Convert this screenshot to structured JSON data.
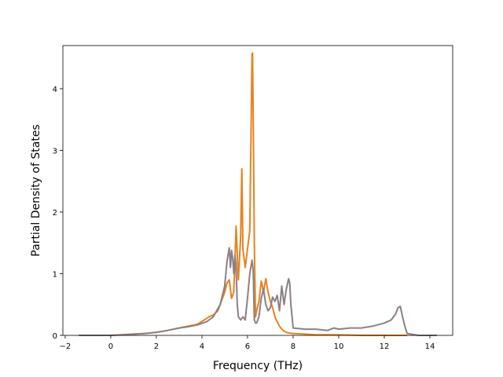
{
  "chart_data": {
    "type": "line",
    "title": "",
    "xlabel": "Frequency (THz)",
    "ylabel": "Partial Density of States",
    "xlim": [
      -2.1,
      15.0
    ],
    "ylim": [
      0,
      4.7
    ],
    "x_ticks": [
      -2,
      0,
      2,
      4,
      6,
      8,
      10,
      12,
      14
    ],
    "x_tick_labels": [
      "−2",
      "0",
      "2",
      "4",
      "6",
      "8",
      "10",
      "12",
      "14"
    ],
    "y_ticks": [
      0,
      1,
      2,
      3,
      4
    ],
    "y_tick_labels": [
      "0",
      "1",
      "2",
      "3",
      "4"
    ],
    "grid": false,
    "legend": "none",
    "series": [
      {
        "color": "#e8821f",
        "x": [
          -1.4,
          0.0,
          0.5,
          1.0,
          1.5,
          2.0,
          2.5,
          3.0,
          3.4,
          3.8,
          4.1,
          4.3,
          4.5,
          4.7,
          4.85,
          5.0,
          5.1,
          5.2,
          5.3,
          5.4,
          5.5,
          5.55,
          5.6,
          5.7,
          5.75,
          5.8,
          5.9,
          6.0,
          6.1,
          6.2,
          6.22,
          6.25,
          6.3,
          6.35,
          6.4,
          6.5,
          6.6,
          6.7,
          6.8,
          6.9,
          7.0,
          7.1,
          7.2,
          7.3,
          7.4,
          7.5,
          7.6,
          7.7,
          7.8,
          8.0,
          8.5,
          9.0,
          10.0,
          11.0,
          12.0,
          12.6,
          12.9,
          13.0
        ],
        "y": [
          0.0,
          0.0,
          0.01,
          0.02,
          0.03,
          0.05,
          0.08,
          0.12,
          0.15,
          0.18,
          0.25,
          0.3,
          0.33,
          0.4,
          0.55,
          0.7,
          0.85,
          0.9,
          0.6,
          0.7,
          1.77,
          1.3,
          0.9,
          1.6,
          2.7,
          1.4,
          1.1,
          1.4,
          1.7,
          4.55,
          4.58,
          3.5,
          1.5,
          0.3,
          0.4,
          0.55,
          0.88,
          0.7,
          0.92,
          0.7,
          0.55,
          0.45,
          0.3,
          0.22,
          0.15,
          0.1,
          0.07,
          0.05,
          0.04,
          0.03,
          0.02,
          0.01,
          0.01,
          0.0,
          0.0,
          0.0,
          0.0,
          0.0
        ]
      },
      {
        "color": "#8c8085",
        "x": [
          -1.4,
          0.0,
          0.5,
          1.0,
          1.5,
          2.0,
          2.5,
          3.0,
          3.4,
          3.8,
          4.2,
          4.5,
          4.8,
          5.0,
          5.1,
          5.2,
          5.25,
          5.3,
          5.35,
          5.4,
          5.45,
          5.5,
          5.55,
          5.6,
          5.7,
          5.8,
          5.9,
          6.0,
          6.1,
          6.2,
          6.25,
          6.3,
          6.35,
          6.4,
          6.5,
          6.6,
          6.7,
          6.8,
          6.9,
          7.0,
          7.1,
          7.2,
          7.3,
          7.4,
          7.5,
          7.6,
          7.7,
          7.8,
          7.85,
          7.9,
          8.0,
          8.5,
          9.0,
          9.5,
          9.8,
          10.0,
          10.5,
          11.0,
          11.5,
          12.0,
          12.3,
          12.5,
          12.6,
          12.7,
          12.8,
          12.9,
          13.0,
          13.5,
          14.3
        ],
        "y": [
          0.0,
          0.0,
          0.01,
          0.02,
          0.03,
          0.05,
          0.08,
          0.12,
          0.14,
          0.17,
          0.22,
          0.3,
          0.5,
          0.8,
          1.2,
          1.42,
          1.1,
          1.38,
          1.25,
          1.0,
          1.3,
          1.1,
          0.5,
          0.3,
          0.25,
          0.3,
          0.25,
          0.6,
          1.0,
          1.22,
          1.05,
          0.25,
          0.2,
          0.2,
          0.3,
          0.6,
          0.75,
          0.5,
          0.4,
          0.45,
          0.62,
          0.55,
          0.65,
          0.4,
          0.8,
          0.5,
          0.75,
          0.92,
          0.85,
          0.5,
          0.12,
          0.1,
          0.1,
          0.08,
          0.12,
          0.1,
          0.12,
          0.12,
          0.15,
          0.2,
          0.25,
          0.35,
          0.45,
          0.47,
          0.3,
          0.15,
          0.03,
          0.0,
          0.0
        ]
      }
    ]
  }
}
